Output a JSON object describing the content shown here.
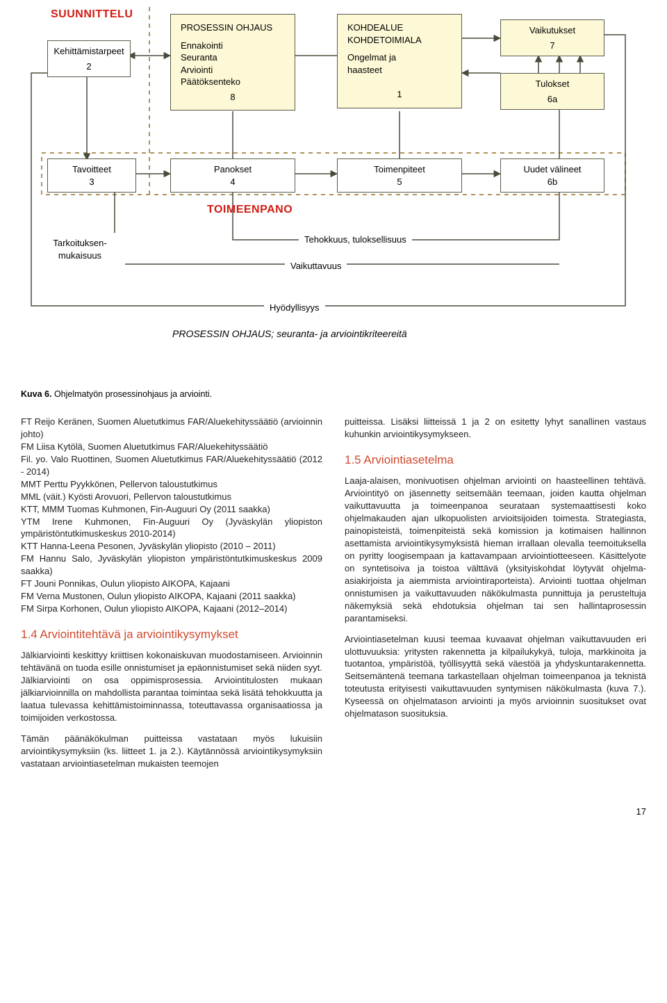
{
  "diagram": {
    "colors": {
      "box_fill": "#fdf9d6",
      "box_border": "#5a5a4a",
      "red": "#d11c14",
      "line": "#4a4a3a",
      "dash": "#b0905a"
    },
    "boxes": {
      "suunnittelu": {
        "label": "SUUNNITTELU"
      },
      "kehittamistarpeet": {
        "label": "Kehittämistarpeet",
        "num": "2"
      },
      "prosessin_ohjaus": {
        "title": "PROSESSIN OHJAUS",
        "lines": "Ennakointi\nSeuranta\nArviointi\nPäätöksenteko",
        "num": "8"
      },
      "kohdealue": {
        "title": "KOHDEALUE\nKOHDETOIMIALA",
        "lines": "Ongelmat ja\nhaasteet",
        "num": "1"
      },
      "vaikutukset": {
        "label": "Vaikutukset",
        "num": "7"
      },
      "tulokset": {
        "label": "Tulokset",
        "num": "6a"
      },
      "tavoitteet": {
        "label": "Tavoitteet",
        "num": "3"
      },
      "panokset": {
        "label": "Panokset",
        "num": "4"
      },
      "toimenpiteet": {
        "label": "Toimenpiteet",
        "num": "5"
      },
      "uudet_valineet": {
        "label": "Uudet välineet",
        "num": "6b"
      },
      "toimeenpano": {
        "label": "TOIMEENPANO"
      },
      "tarkoituksen": {
        "label": "Tarkoituksen-\nmukaisuus"
      },
      "tehokkuus": {
        "label": "Tehokkuus, tuloksellisuus"
      },
      "vaikuttavuus": {
        "label": "Vaikuttavuus"
      },
      "hyodyllisyys": {
        "label": "Hyödyllisyys"
      },
      "subtitle": {
        "label": "PROSESSIN OHJAUS; seuranta- ja arviointikriteereitä"
      }
    }
  },
  "caption": {
    "strong": "Kuva 6.",
    "text": " Ohjelmatyön prosessinohjaus ja arviointi."
  },
  "left_col": {
    "people": [
      "FT Reijo Keränen, Suomen Aluetutkimus FAR/Aluekehityssäätiö (arvioinnin johto)",
      "FM Liisa Kytölä, Suomen Aluetutkimus FAR/Aluekehityssäätiö",
      "Fil. yo. Valo Ruottinen, Suomen Aluetutkimus FAR/Aluekehityssäätiö (2012 - 2014)",
      "MMT Perttu Pyykkönen, Pellervon taloustutkimus",
      "MML (väit.) Kyösti Arovuori, Pellervon taloustutkimus",
      "KTT, MMM Tuomas Kuhmonen, Fin-Auguuri Oy (2011 saakka)",
      "YTM Irene Kuhmonen, Fin-Auguuri Oy (Jyväskylän yliopiston ympäristöntutkimuskeskus 2010-2014)",
      "KTT Hanna-Leena Pesonen, Jyväskylän yliopisto (2010 – 2011)",
      "FM Hannu Salo, Jyväskylän yliopiston ympäristöntutkimuskeskus 2009 saakka)",
      "FT Jouni Ponnikas, Oulun yliopisto AIKOPA, Kajaani",
      "FM Verna Mustonen, Oulun yliopisto AIKOPA, Kajaani (2011 saakka)",
      "FM Sirpa Korhonen, Oulun yliopisto AIKOPA, Kajaani (2012–2014)"
    ],
    "section_title": "1.4 Arviointitehtävä ja arviointikysymykset",
    "p1": "Jälkiarviointi keskittyy kriittisen kokonaiskuvan muodostamiseen. Arvioinnin tehtävänä on tuoda esille onnistumiset ja epäonnistumiset sekä niiden syyt. Jälkiarviointi on osa oppimisprosessia. Arviointitulosten mukaan jälkiarvioinnilla on mahdollista parantaa toimintaa sekä lisätä tehokkuutta ja laatua tulevassa kehittämistoiminnassa, toteuttavassa organisaatiossa ja toimijoiden verkostossa.",
    "p2": "Tämän päänäkökulman puitteissa vastataan myös lukuisiin arviointikysymyksiin (ks. liitteet 1. ja 2.). Käytännössä arviointikysymyksiin vastataan arviointiasetelman mukaisten teemojen"
  },
  "right_col": {
    "p1": "puitteissa. Lisäksi liitteissä 1 ja 2 on esitetty lyhyt sanallinen vastaus kuhunkin arviointikysymykseen.",
    "section_title": "1.5 Arviointiasetelma",
    "p2": "Laaja-alaisen, monivuotisen ohjelman arviointi on haasteellinen tehtävä. Arviointityö on jäsennetty seitsemään teemaan, joiden kautta ohjelman vaikuttavuutta ja toimeenpanoa seurataan systemaattisesti koko ohjelmakauden ajan ulkopuolisten arvioitsijoiden toimesta. Strategiasta, painopisteistä, toimenpiteistä sekä komission ja kotimaisen hallinnon asettamista arviointikysymyksistä hieman irrallaan olevalla teemoituksella on pyritty loogisempaan ja kattavampaan arviointiotteeseen. Käsittelyote on syntetisoiva ja toistoa välttävä (yksityiskohdat löytyvät ohjelma-asiakirjoista ja aiemmista arviointiraporteista). Arviointi tuottaa ohjelman onnistumisen ja vaikuttavuuden näkökulmasta punnittuja ja perusteltuja näkemyksiä sekä ehdotuksia ohjelman tai sen hallintaprosessin parantamiseksi.",
    "p3": "Arviointiasetelman kuusi teemaa kuvaavat ohjelman vaikuttavuuden eri ulottuvuuksia: yritysten rakennetta ja kilpailukykyä, tuloja, markkinoita ja tuotantoa, ympäristöä, työllisyyttä sekä väestöä ja yhdyskuntarakennetta. Seitsemäntenä teemana tarkastellaan ohjelman toimeenpanoa ja teknistä toteutusta erityisesti vaikuttavuuden syntymisen näkökulmasta (kuva 7.). Kyseessä on ohjelmatason arviointi ja myös arvioinnin suositukset ovat ohjelmatason suosituksia."
  },
  "page_number": "17"
}
